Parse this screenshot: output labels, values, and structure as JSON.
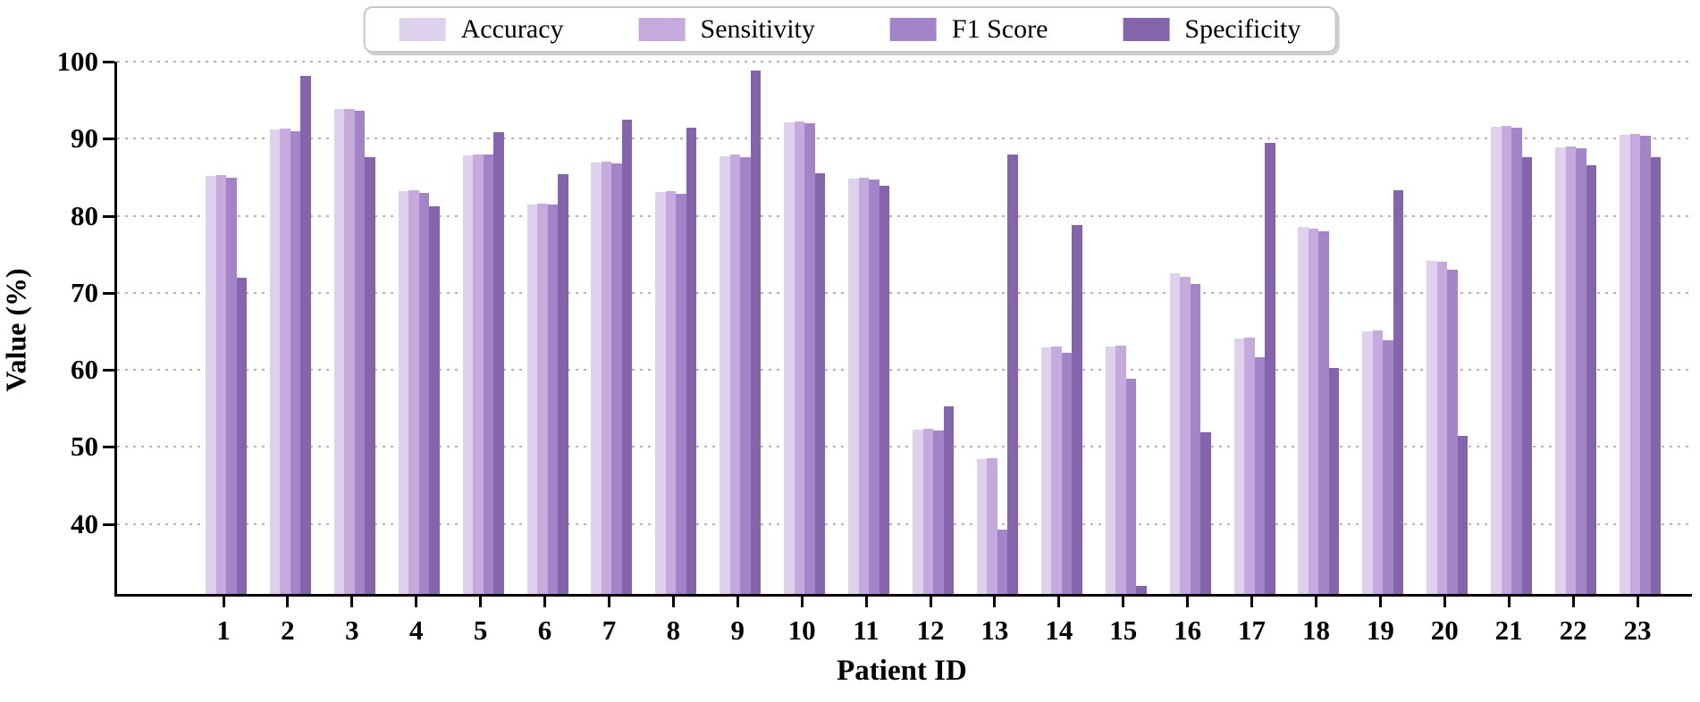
{
  "figure": {
    "background_color": "#ffffff",
    "grid_color": "#b5b5b5",
    "axis_color": "#000000"
  },
  "legend": {
    "position": "top center",
    "items": [
      {
        "label": "Accuracy",
        "color": "#ded1ed"
      },
      {
        "label": "Sensitivity",
        "color": "#c7aadd"
      },
      {
        "label": "F1 Score",
        "color": "#a384c9"
      },
      {
        "label": "Specificity",
        "color": "#8465ab"
      }
    ]
  },
  "chart_data": {
    "type": "bar",
    "title": "",
    "xlabel": "Patient ID",
    "ylabel": "Value (%)",
    "categories": [
      "1",
      "2",
      "3",
      "4",
      "5",
      "6",
      "7",
      "8",
      "9",
      "10",
      "11",
      "12",
      "13",
      "14",
      "15",
      "16",
      "17",
      "18",
      "19",
      "20",
      "21",
      "22",
      "23"
    ],
    "yticks": [
      40,
      50,
      60,
      70,
      80,
      90,
      100
    ],
    "ylim": [
      31,
      100
    ],
    "grid": "horizontal dotted",
    "legend_position": "top center",
    "series": [
      {
        "name": "Accuracy",
        "color": "#ded1ed",
        "values": [
          85.2,
          91.2,
          93.8,
          83.2,
          87.8,
          81.5,
          86.9,
          83.1,
          87.7,
          92.1,
          84.8,
          52.2,
          48.4,
          62.9,
          63.0,
          72.5,
          64.1,
          78.6,
          65.0,
          74.2,
          91.5,
          88.9,
          90.5
        ]
      },
      {
        "name": "Sensitivity",
        "color": "#c7aadd",
        "values": [
          85.3,
          91.3,
          93.9,
          83.3,
          87.9,
          81.6,
          87.0,
          83.2,
          87.9,
          92.2,
          84.9,
          52.3,
          48.5,
          63.0,
          63.1,
          72.1,
          64.2,
          78.3,
          65.1,
          74.0,
          91.6,
          89.0,
          90.6
        ]
      },
      {
        "name": "F1 Score",
        "color": "#a384c9",
        "values": [
          84.9,
          91.0,
          93.6,
          83.0,
          88.0,
          81.4,
          86.8,
          82.9,
          87.6,
          92.0,
          84.7,
          52.1,
          39.2,
          62.2,
          58.9,
          71.1,
          61.6,
          78.0,
          63.8,
          73.0,
          91.4,
          88.7,
          90.4
        ]
      },
      {
        "name": "Specificity",
        "color": "#8465ab",
        "values": [
          71.9,
          98.1,
          87.6,
          81.2,
          90.8,
          85.4,
          92.5,
          91.4,
          98.8,
          85.5,
          83.9,
          55.3,
          87.9,
          78.8,
          32.0,
          51.9,
          89.5,
          60.2,
          83.3,
          51.4,
          87.6,
          86.5,
          87.6
        ]
      }
    ]
  }
}
